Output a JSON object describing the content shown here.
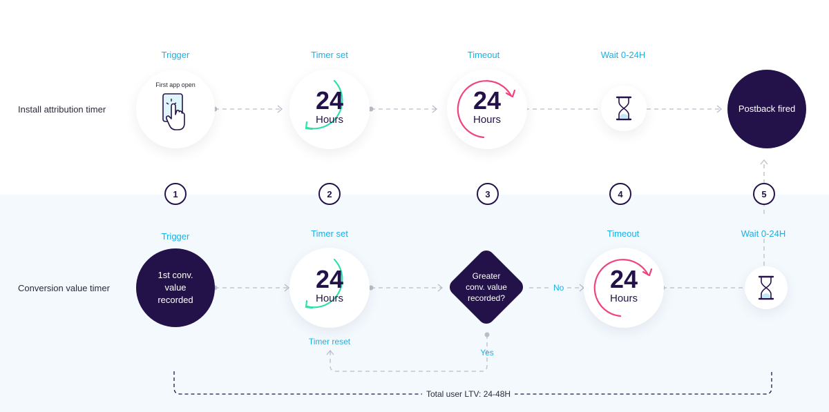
{
  "rows": {
    "install": "Install attribution timer",
    "conversion": "Conversion value timer"
  },
  "top": {
    "labels": [
      "Trigger",
      "Timer set",
      "Timeout",
      "Wait 0-24H"
    ],
    "first_app_open": "First app open",
    "timer_number": "24",
    "timer_unit": "Hours",
    "postback": "Postback fired"
  },
  "steps": [
    "1",
    "2",
    "3",
    "4",
    "5"
  ],
  "bottom": {
    "labels": [
      "Trigger",
      "Timer set",
      "Timeout",
      "Wait 0-24H"
    ],
    "first_conv": [
      "1st conv.",
      "value",
      "recorded"
    ],
    "timer_number": "24",
    "timer_unit": "Hours",
    "decision": [
      "Greater",
      "conv. value",
      "recorded?"
    ],
    "no_label": "No",
    "yes_label": "Yes",
    "timer_reset": "Timer reset"
  },
  "total_ltv": "Total user LTV: 24-48H",
  "colors": {
    "accent_blue": "#18b1e6",
    "dark_navy": "#23124a",
    "green_arc": "#2fe0a8",
    "pink_arc": "#f0427c",
    "connector_gray": "#b9bdc8"
  }
}
